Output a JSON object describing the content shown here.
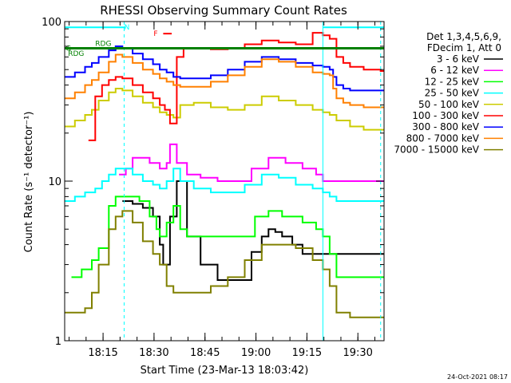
{
  "chart_data": {
    "type": "line",
    "title": "RHESSI Observing Summary Count Rates",
    "xlabel": "Start Time (23-Mar-13 18:03:42)",
    "ylabel": "Count Rate (s⁻¹ detector⁻¹)",
    "yscale": "log",
    "ylim": [
      1,
      100
    ],
    "xlim": [
      0,
      94
    ],
    "x_unit": "minutes after 18:03:42",
    "y_ticks": [
      {
        "value": 1,
        "label": "1"
      },
      {
        "value": 10,
        "label": "10"
      },
      {
        "value": 100,
        "label": "100"
      }
    ],
    "x_ticks": [
      {
        "value": 11.3,
        "label": "18:15"
      },
      {
        "value": 26.3,
        "label": "18:30"
      },
      {
        "value": 41.3,
        "label": "18:45"
      },
      {
        "value": 56.3,
        "label": "19:00"
      },
      {
        "value": 71.3,
        "label": "19:15"
      },
      {
        "value": 86.3,
        "label": "19:30"
      }
    ],
    "legend": {
      "header": [
        "Det 1,3,4,5,6,9,",
        "FDecim 1, Att 0"
      ],
      "entries": [
        {
          "label": "3 - 6 keV",
          "color": "#000000"
        },
        {
          "label": "6 - 12 keV",
          "color": "#ff00ff"
        },
        {
          "label": "12 - 25 keV",
          "color": "#00ff00"
        },
        {
          "label": "25 - 50 keV",
          "color": "#00ffff"
        },
        {
          "label": "50 - 100 keV",
          "color": "#cccc00"
        },
        {
          "label": "100 - 300 keV",
          "color": "#ff0000"
        },
        {
          "label": "300 - 800 keV",
          "color": "#0000ff"
        },
        {
          "label": "800 - 7000 keV",
          "color": "#ff8000"
        },
        {
          "label": "7000 - 15000 keV",
          "color": "#808000"
        }
      ]
    },
    "series": [
      {
        "name": "3 - 6 keV",
        "color": "#000000",
        "x": [
          17,
          20,
          23,
          26,
          28,
          29,
          31,
          33,
          36,
          40,
          45,
          50,
          55,
          58,
          60,
          62,
          64,
          67,
          70
        ],
        "y": [
          7.5,
          7.2,
          6.8,
          6,
          4,
          3,
          6,
          10,
          4.5,
          3,
          2.4,
          2.4,
          3.6,
          4.5,
          5,
          4.8,
          4.5,
          4,
          3.5
        ]
      },
      {
        "name": "6 - 12 keV",
        "color": "#ff00ff",
        "x": [
          16,
          18,
          20,
          22,
          25,
          28,
          30,
          31,
          33,
          36,
          40,
          45,
          50,
          55,
          60,
          65,
          70,
          74,
          76
        ],
        "y": [
          11,
          12,
          14,
          14,
          13,
          12,
          13,
          17,
          13,
          11,
          10.5,
          10,
          10,
          12,
          14,
          13,
          12,
          11,
          10
        ]
      },
      {
        "name": "12 - 25 keV",
        "color": "#00ff00",
        "x": [
          2,
          5,
          8,
          10,
          13,
          15,
          17,
          19,
          22,
          25,
          27,
          28,
          30,
          32,
          34,
          36,
          40,
          45,
          50,
          53,
          56,
          60,
          64,
          67,
          70,
          74,
          76,
          78,
          80,
          83,
          86,
          90,
          93
        ],
        "y": [
          2.5,
          2.8,
          3.2,
          3.8,
          7,
          8,
          8,
          8,
          7.5,
          6,
          5,
          4.5,
          5.5,
          7,
          5,
          4.5,
          4.5,
          4.5,
          4.5,
          4.5,
          6,
          6.5,
          6,
          6,
          5.5,
          5,
          4.5,
          3.5,
          2.5,
          2.5,
          2.5,
          2.5,
          2.5
        ]
      },
      {
        "name": "25 - 50 keV",
        "color": "#00ffff",
        "x": [
          0,
          3,
          6,
          9,
          11,
          13,
          15,
          17,
          20,
          23,
          26,
          28,
          30,
          32,
          34,
          38,
          43,
          48,
          53,
          58,
          63,
          68,
          73,
          76,
          78,
          80,
          84,
          88,
          93
        ],
        "y": [
          7.5,
          8,
          8.5,
          9,
          10,
          11,
          12,
          12,
          11,
          10,
          9.5,
          9,
          10,
          12,
          10,
          9,
          8.5,
          8.5,
          9.5,
          11,
          10.5,
          9.5,
          9,
          8.5,
          8,
          7.5,
          7.5,
          7.5,
          7.5
        ]
      },
      {
        "name": "50 - 100 keV",
        "color": "#cccc00",
        "x": [
          0,
          3,
          6,
          8,
          10,
          13,
          15,
          17,
          20,
          23,
          26,
          28,
          30,
          32,
          34,
          38,
          43,
          48,
          53,
          58,
          63,
          68,
          73,
          76,
          78,
          80,
          84,
          88,
          93
        ],
        "y": [
          22,
          24,
          26,
          28,
          32,
          36,
          38,
          37,
          34,
          31,
          29,
          27,
          26,
          25,
          30,
          31,
          29,
          28,
          30,
          34,
          32,
          30,
          28,
          27,
          26,
          24,
          22,
          21,
          21
        ]
      },
      {
        "name": "100 - 300 keV",
        "color": "#ff0000",
        "x": [
          7,
          9,
          11,
          13,
          15,
          17,
          20,
          23,
          26,
          28,
          29.5,
          31,
          33,
          35,
          38,
          43,
          48,
          53,
          58,
          63,
          68,
          73,
          76,
          78,
          80,
          82,
          84,
          88,
          93
        ],
        "y": [
          18,
          34,
          40,
          43,
          45,
          44,
          40,
          36,
          33,
          30,
          28,
          23,
          60,
          68,
          68,
          67,
          68,
          72,
          76,
          74,
          72,
          85,
          82,
          78,
          60,
          55,
          52,
          50,
          49
        ]
      },
      {
        "name": "300 - 800 keV",
        "color": "#0000ff",
        "x": [
          0,
          3,
          6,
          8,
          10,
          13,
          15,
          17,
          20,
          23,
          26,
          28,
          30,
          32,
          34,
          38,
          43,
          48,
          53,
          58,
          63,
          68,
          73,
          76,
          78,
          79,
          80,
          82,
          84,
          88,
          93
        ],
        "y": [
          45,
          48,
          52,
          55,
          60,
          66,
          70,
          68,
          63,
          58,
          54,
          50,
          48,
          45,
          44,
          44,
          46,
          50,
          56,
          60,
          58,
          55,
          53,
          52,
          50,
          45,
          40,
          38,
          37,
          37,
          37
        ]
      },
      {
        "name": "800 - 7000 keV",
        "color": "#ff8000",
        "x": [
          0,
          3,
          6,
          8,
          10,
          13,
          15,
          17,
          20,
          23,
          26,
          28,
          30,
          32,
          34,
          38,
          43,
          48,
          53,
          58,
          63,
          68,
          73,
          76,
          78,
          79,
          80,
          82,
          84,
          88,
          93
        ],
        "y": [
          33,
          36,
          40,
          43,
          48,
          56,
          62,
          60,
          55,
          50,
          47,
          44,
          42,
          40,
          39,
          39,
          42,
          46,
          52,
          58,
          56,
          52,
          48,
          47,
          46,
          38,
          33,
          31,
          30,
          29,
          29
        ]
      },
      {
        "name": "7000 - 15000 keV",
        "color": "#808000",
        "x": [
          0,
          3,
          6,
          8,
          10,
          13,
          15,
          17,
          20,
          23,
          26,
          28,
          30,
          32,
          34,
          38,
          43,
          48,
          53,
          58,
          63,
          68,
          73,
          76,
          78,
          80,
          84,
          88,
          93
        ],
        "y": [
          1.5,
          1.5,
          1.6,
          2,
          3,
          5,
          6,
          6.5,
          5.5,
          4.2,
          3.5,
          3,
          2.2,
          2,
          2,
          2,
          2.2,
          2.5,
          3.2,
          4,
          4,
          3.8,
          3.2,
          2.8,
          2.2,
          1.5,
          1.4,
          1.4,
          1.4
        ]
      }
    ],
    "segments": [
      {
        "label": "N",
        "color": "#00ffff",
        "x0": 0,
        "x1": 18,
        "y": 92
      },
      {
        "label": "",
        "color": "#00ffff",
        "x0": 76,
        "x1": 94,
        "y": 92
      },
      {
        "label": "F",
        "color": "#ff0000",
        "x0": 29,
        "x1": 31.5,
        "y": 84
      },
      {
        "label": "RDG",
        "color": "#008000",
        "x0": 0,
        "x1": 94,
        "y": 68
      }
    ],
    "segment_labels": [
      {
        "label": "RDG",
        "color": "#008000",
        "x": 9,
        "y": 73
      },
      {
        "label": "RDG",
        "color": "#008000",
        "x": 1,
        "y": 63
      }
    ],
    "vlines": [
      {
        "x": 0,
        "color": "#00ffff",
        "style": "solid"
      },
      {
        "x": 76,
        "color": "#00ffff",
        "style": "solid"
      },
      {
        "x": 17.5,
        "color": "#00ffff",
        "style": "dashed"
      },
      {
        "x": 93,
        "color": "#00ffff",
        "style": "dashed"
      }
    ]
  },
  "timestamp": "24-Oct-2021 08:17"
}
